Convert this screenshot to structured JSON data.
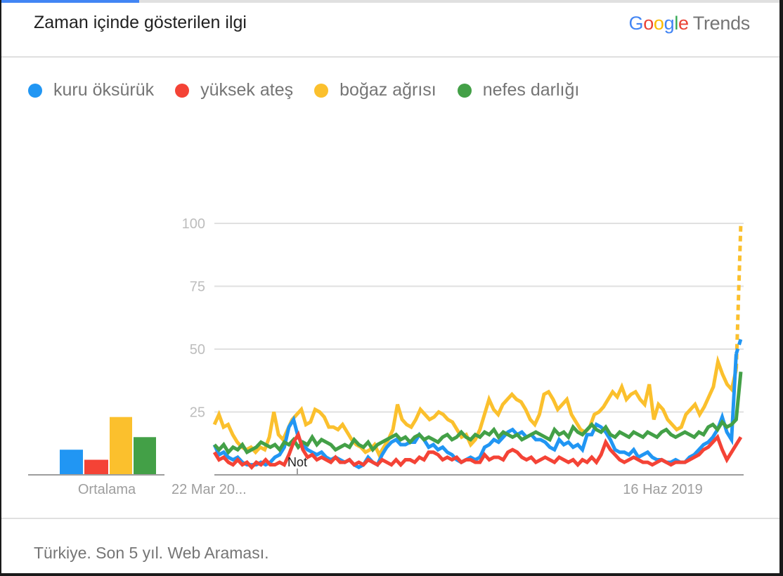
{
  "header": {
    "title": "Zaman içinde gösterilen ilgi",
    "logo": {
      "google": [
        "G",
        "o",
        "o",
        "g",
        "l",
        "e"
      ],
      "product": "Trends"
    }
  },
  "legend": [
    {
      "label": "kuru öksürük",
      "color": "#2196f3"
    },
    {
      "label": "yüksek ateş",
      "color": "#f44336"
    },
    {
      "label": "boğaz ağrısı",
      "color": "#fbc02d"
    },
    {
      "label": "nefes darlığı",
      "color": "#43a047"
    }
  ],
  "averages": {
    "label": "Ortalama"
  },
  "footer": {
    "text": "Türkiye. Son 5 yıl. Web Araması."
  },
  "chart_data": [
    {
      "type": "bar",
      "title": "Ortalama",
      "categories": [
        "kuru öksürük",
        "yüksek ateş",
        "boğaz ağrısı",
        "nefes darlığı"
      ],
      "values": [
        10,
        6,
        23,
        15
      ],
      "colors": [
        "#2196f3",
        "#f44336",
        "#fbc02d",
        "#43a047"
      ],
      "ylim": [
        0,
        100
      ]
    },
    {
      "type": "line",
      "title": "Zaman içinde gösterilen ilgi",
      "xlabel": "",
      "ylabel": "",
      "ylim": [
        0,
        100
      ],
      "yticks": [
        25,
        50,
        75,
        100
      ],
      "grid": true,
      "x_tick_labels": [
        {
          "label": "22 Mar 20...",
          "position": 0
        },
        {
          "label": "16 Haz 2019",
          "position": 0.88
        }
      ],
      "annotations": [
        {
          "label": "Not",
          "position": 0.155
        }
      ],
      "legend_position": "top",
      "x_range": "Son 5 yıl (haftalık)",
      "series": [
        {
          "name": "kuru öksürük",
          "color": "#2196f3",
          "values": [
            12,
            8,
            9,
            7,
            6,
            7,
            5,
            4,
            4,
            4,
            5,
            4,
            5,
            7,
            8,
            11,
            19,
            22,
            15,
            12,
            10,
            9,
            8,
            9,
            7,
            6,
            7,
            6,
            5,
            6,
            4,
            3,
            4,
            7,
            5,
            4,
            8,
            11,
            13,
            14,
            12,
            12,
            13,
            13,
            16,
            14,
            11,
            12,
            10,
            11,
            9,
            8,
            6,
            5,
            6,
            7,
            6,
            7,
            11,
            12,
            14,
            13,
            15,
            17,
            18,
            16,
            17,
            15,
            16,
            14,
            14,
            13,
            11,
            10,
            14,
            12,
            13,
            11,
            12,
            10,
            16,
            16,
            20,
            19,
            17,
            14,
            10,
            9,
            9,
            8,
            10,
            7,
            8,
            9,
            7,
            6,
            6,
            5,
            5,
            6,
            5,
            5,
            7,
            8,
            10,
            12,
            13,
            15,
            18,
            23,
            17,
            14,
            48,
            54
          ],
          "last_segment_dashed": true
        },
        {
          "name": "yüksek ateş",
          "color": "#f44336",
          "values": [
            9,
            6,
            7,
            5,
            4,
            6,
            4,
            5,
            3,
            5,
            4,
            6,
            4,
            4,
            5,
            4,
            8,
            13,
            16,
            10,
            7,
            8,
            6,
            7,
            6,
            5,
            7,
            5,
            5,
            6,
            4,
            5,
            4,
            6,
            5,
            4,
            6,
            5,
            4,
            6,
            4,
            6,
            6,
            5,
            7,
            6,
            9,
            9,
            8,
            6,
            7,
            6,
            7,
            5,
            6,
            6,
            5,
            5,
            8,
            6,
            7,
            7,
            6,
            9,
            10,
            9,
            7,
            6,
            7,
            5,
            6,
            7,
            6,
            5,
            7,
            6,
            5,
            6,
            4,
            6,
            5,
            7,
            5,
            8,
            13,
            10,
            8,
            6,
            5,
            6,
            7,
            6,
            5,
            5,
            4,
            5,
            6,
            5,
            4,
            5,
            5,
            5,
            6,
            7,
            8,
            10,
            11,
            13,
            15,
            10,
            6,
            9,
            12,
            15
          ],
          "last_segment_dashed": false
        },
        {
          "name": "boğaz ağrısı",
          "color": "#fbc02d",
          "values": [
            20,
            24,
            19,
            20,
            16,
            13,
            11,
            10,
            11,
            9,
            11,
            10,
            15,
            25,
            16,
            14,
            18,
            22,
            24,
            26,
            20,
            21,
            26,
            25,
            23,
            19,
            19,
            18,
            20,
            17,
            14,
            12,
            11,
            9,
            10,
            12,
            8,
            11,
            14,
            18,
            28,
            22,
            20,
            19,
            22,
            26,
            24,
            22,
            23,
            25,
            24,
            22,
            21,
            18,
            15,
            16,
            12,
            14,
            18,
            24,
            30,
            26,
            24,
            28,
            30,
            32,
            30,
            29,
            26,
            22,
            20,
            24,
            32,
            33,
            30,
            26,
            28,
            30,
            24,
            21,
            18,
            17,
            19,
            24,
            25,
            27,
            30,
            33,
            31,
            35,
            30,
            32,
            33,
            30,
            28,
            36,
            22,
            28,
            26,
            22,
            20,
            18,
            19,
            24,
            26,
            28,
            24,
            27,
            31,
            35,
            45,
            40,
            36,
            34,
            42,
            100
          ],
          "last_segment_dashed": true
        },
        {
          "name": "nefes darlığı",
          "color": "#43a047",
          "values": [
            12,
            10,
            12,
            9,
            11,
            10,
            12,
            9,
            10,
            11,
            13,
            12,
            11,
            12,
            10,
            13,
            12,
            14,
            11,
            13,
            12,
            15,
            12,
            14,
            13,
            12,
            10,
            11,
            12,
            11,
            14,
            12,
            11,
            13,
            10,
            12,
            13,
            14,
            15,
            16,
            14,
            15,
            13,
            15,
            16,
            14,
            15,
            14,
            13,
            15,
            16,
            14,
            15,
            17,
            15,
            14,
            16,
            15,
            17,
            16,
            18,
            15,
            17,
            16,
            15,
            16,
            14,
            15,
            16,
            17,
            16,
            15,
            14,
            18,
            16,
            17,
            15,
            19,
            17,
            16,
            18,
            20,
            18,
            17,
            19,
            16,
            15,
            17,
            16,
            15,
            17,
            16,
            15,
            17,
            16,
            15,
            17,
            18,
            16,
            15,
            16,
            17,
            16,
            15,
            17,
            16,
            19,
            20,
            18,
            21,
            19,
            20,
            22,
            41
          ],
          "last_segment_dashed": false
        }
      ]
    }
  ]
}
